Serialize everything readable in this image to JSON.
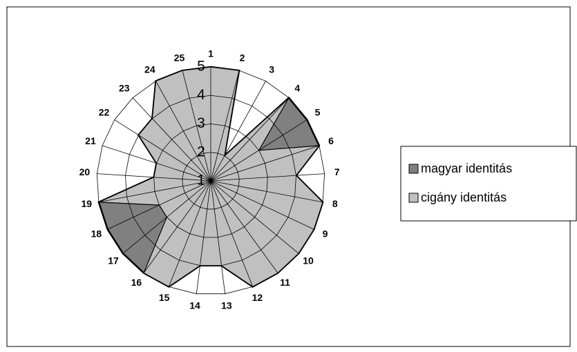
{
  "chart_data": {
    "type": "radar",
    "categories": [
      "1",
      "2",
      "3",
      "4",
      "5",
      "6",
      "7",
      "8",
      "9",
      "10",
      "11",
      "12",
      "13",
      "14",
      "15",
      "16",
      "17",
      "18",
      "19",
      "20",
      "21",
      "22",
      "23",
      "24",
      "25"
    ],
    "series": [
      {
        "name": "magyar identitás",
        "color": "#808080",
        "values": [
          5,
          5,
          2,
          5,
          5,
          5,
          4,
          5,
          5,
          5,
          5,
          5,
          4,
          4,
          5,
          5,
          5,
          5,
          5,
          3,
          3,
          4,
          4,
          5,
          5
        ]
      },
      {
        "name": "cigány identitás",
        "color": "#c0c0c0",
        "values": [
          5,
          5,
          2,
          5,
          3,
          5,
          4,
          5,
          5,
          5,
          5,
          5,
          4,
          4,
          5,
          5,
          3,
          3,
          5,
          3,
          3,
          4,
          4,
          5,
          5
        ]
      }
    ],
    "rlim": [
      1,
      5
    ],
    "rticks": [
      1,
      2,
      3,
      4,
      5
    ],
    "grid": true,
    "legend": "right"
  }
}
